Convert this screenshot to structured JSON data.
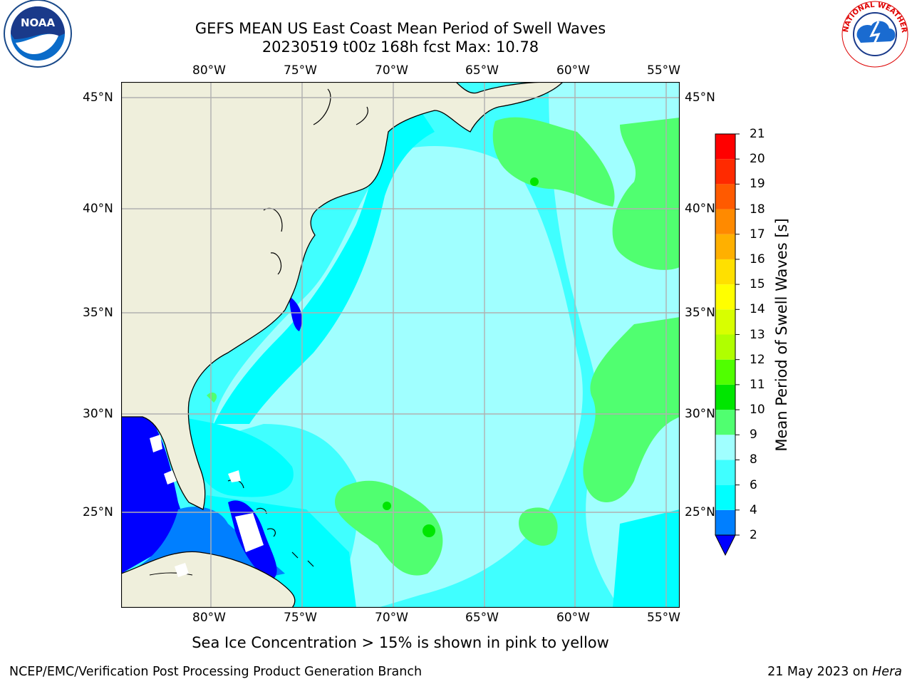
{
  "title_line1": "GEFS MEAN US East Coast Mean Period of Swell Waves",
  "title_line2": "20230519 t00z 168h fcst   Max: 10.78",
  "lon_ticks": [
    "80°W",
    "75°W",
    "70°W",
    "65°W",
    "60°W",
    "55°W"
  ],
  "lat_ticks": [
    "45°N",
    "40°N",
    "35°N",
    "30°N",
    "25°N"
  ],
  "colorbar": {
    "label": "Mean Period of Swell Waves [s]",
    "levels": [
      "2",
      "4",
      "6",
      "8",
      "9",
      "10",
      "11",
      "12",
      "13",
      "14",
      "15",
      "16",
      "17",
      "18",
      "19",
      "20",
      "21"
    ],
    "colors": [
      "#0000ff",
      "#007fff",
      "#00ffff",
      "#40ffff",
      "#a0ffff",
      "#50ff70",
      "#00e600",
      "#50ff00",
      "#b0ff00",
      "#d8ff00",
      "#ffff00",
      "#ffe000",
      "#ffb000",
      "#ff8a00",
      "#ff5a00",
      "#ff2a00",
      "#ff0000"
    ]
  },
  "note": "Sea Ice Concentration > 15% is shown in pink to yellow",
  "footer_left": "NCEP/EMC/Verification Post Processing Product Generation Branch",
  "footer_right_date": "21 May 2023 on ",
  "footer_right_host": "Hera",
  "logos": {
    "noaa_text": "NOAA",
    "nws_text": "NATIONAL WEATHER SERVICE"
  },
  "map_colors": {
    "land": "#efefdc",
    "deep": "#0000ff",
    "c4": "#007fff",
    "c6": "#00ffff",
    "c8": "#40ffff",
    "c9": "#a0ffff",
    "c10": "#50ff70",
    "c11": "#00e600"
  }
}
